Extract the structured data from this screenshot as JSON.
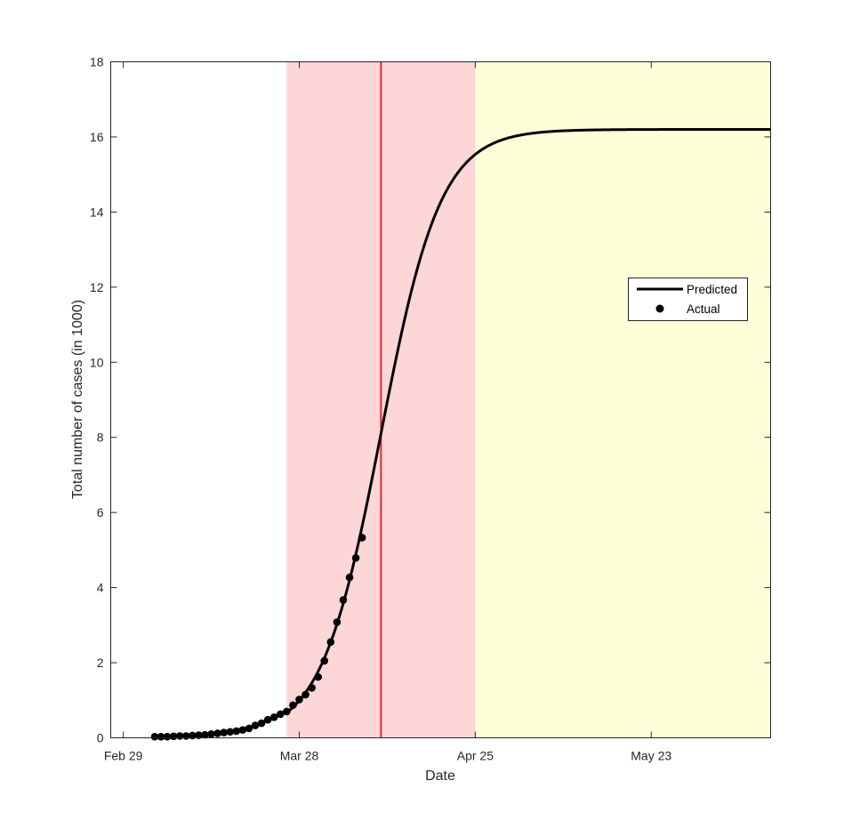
{
  "chart_data": {
    "type": "line",
    "xlabel": "Date",
    "ylabel": "Total number of cases (in 1000)",
    "x_ticks": [
      {
        "date": "2020-02-29",
        "label": "Feb 29"
      },
      {
        "date": "2020-03-28",
        "label": "Mar 28"
      },
      {
        "date": "2020-04-25",
        "label": "Apr 25"
      },
      {
        "date": "2020-05-23",
        "label": "May 23"
      }
    ],
    "xlim": [
      "2020-02-27",
      "2020-06-11"
    ],
    "ylim": [
      0,
      18
    ],
    "y_ticks": [
      0,
      2,
      4,
      6,
      8,
      10,
      12,
      14,
      16,
      18
    ],
    "shaded_regions": [
      {
        "start": "2020-03-26",
        "end": "2020-04-25",
        "color": "#fdd6d8"
      },
      {
        "start": "2020-04-25",
        "end": "2020-06-11",
        "color": "#fefed9"
      }
    ],
    "vertical_line": {
      "date": "2020-04-10",
      "color": "#e3191c"
    },
    "series": [
      {
        "name": "Predicted",
        "style": "line",
        "color": "#000000",
        "model": {
          "K": 16.2,
          "r": 0.21,
          "t0": "2020-04-10"
        },
        "x_range": [
          "2020-03-26",
          "2020-06-11"
        ]
      },
      {
        "name": "Actual",
        "style": "markers",
        "color": "#000000",
        "x": [
          "2020-03-05",
          "2020-03-06",
          "2020-03-07",
          "2020-03-08",
          "2020-03-09",
          "2020-03-10",
          "2020-03-11",
          "2020-03-12",
          "2020-03-13",
          "2020-03-14",
          "2020-03-15",
          "2020-03-16",
          "2020-03-17",
          "2020-03-18",
          "2020-03-19",
          "2020-03-20",
          "2020-03-21",
          "2020-03-22",
          "2020-03-23",
          "2020-03-24",
          "2020-03-25",
          "2020-03-26",
          "2020-03-27",
          "2020-03-28",
          "2020-03-29",
          "2020-03-30",
          "2020-03-31",
          "2020-04-01",
          "2020-04-02",
          "2020-04-03",
          "2020-04-04",
          "2020-04-05",
          "2020-04-06"
        ],
        "values": [
          0.03,
          0.03,
          0.03,
          0.04,
          0.05,
          0.05,
          0.06,
          0.07,
          0.08,
          0.1,
          0.12,
          0.14,
          0.16,
          0.18,
          0.21,
          0.25,
          0.33,
          0.39,
          0.48,
          0.55,
          0.63,
          0.7,
          0.87,
          1.02,
          1.15,
          1.33,
          1.62,
          2.05,
          2.55,
          3.08,
          3.67,
          4.27,
          4.79
        ]
      }
    ],
    "last_actual": {
      "date": "2020-04-07",
      "value": 5.33
    },
    "legend": {
      "position": "right",
      "entries": [
        "Predicted",
        "Actual"
      ]
    },
    "grid": false
  }
}
